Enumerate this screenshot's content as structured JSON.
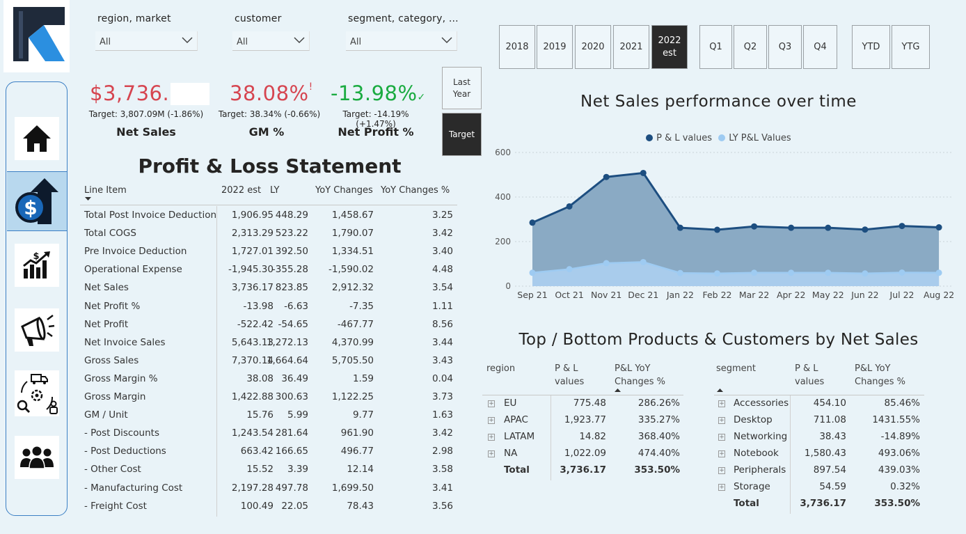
{
  "filters": [
    {
      "label": "region, market",
      "value": "All"
    },
    {
      "label": "customer",
      "value": "All"
    },
    {
      "label": "segment, category, ...",
      "value": "All"
    }
  ],
  "kpis": [
    {
      "value": "$3,736.",
      "target": "Target: 3,807.09M (-1.86%)",
      "title": "Net Sales",
      "color": "#d64550"
    },
    {
      "value": "38.08%",
      "target": "Target: 38.34% (-0.66%)",
      "title": "GM %",
      "color": "#d64550",
      "mark": "!"
    },
    {
      "value": "-13.98%",
      "target": "Target: -14.19% (+1.47%)",
      "title": "Net Profit %",
      "color": "#1aab40",
      "mark": "✓"
    }
  ],
  "compare_toggle": {
    "last_year": "Last Year",
    "target": "Target"
  },
  "years": [
    "2018",
    "2019",
    "2020",
    "2021",
    "2022 est"
  ],
  "quarters": [
    "Q1",
    "Q2",
    "Q3",
    "Q4"
  ],
  "periods": [
    "YTD",
    "YTG"
  ],
  "pl": {
    "title": "Profit & Loss Statement",
    "headers": [
      "Line Item",
      "2022 est",
      "LY",
      "YoY Changes",
      "YoY Changes %"
    ],
    "rows": [
      [
        "Total Post Invoice Deduction",
        "1,906.95",
        "448.29",
        "1,458.67",
        "3.25"
      ],
      [
        "Total COGS",
        "2,313.29",
        "523.22",
        "1,790.07",
        "3.42"
      ],
      [
        "Pre Invoice Deduction",
        "1,727.01",
        "392.50",
        "1,334.51",
        "3.40"
      ],
      [
        "Operational Expense",
        "-1,945.30",
        "-355.28",
        "-1,590.02",
        "4.48"
      ],
      [
        "Net Sales",
        "3,736.17",
        "823.85",
        "2,912.32",
        "3.54"
      ],
      [
        "Net Profit %",
        "-13.98",
        "-6.63",
        "-7.35",
        "1.11"
      ],
      [
        "Net Profit",
        "-522.42",
        "-54.65",
        "-467.77",
        "8.56"
      ],
      [
        "Net Invoice Sales",
        "5,643.13",
        "1,272.13",
        "4,370.99",
        "3.44"
      ],
      [
        "Gross Sales",
        "7,370.14",
        "1,664.64",
        "5,705.50",
        "3.43"
      ],
      [
        "Gross Margin %",
        "38.08",
        "36.49",
        "1.59",
        "0.04"
      ],
      [
        "Gross Margin",
        "1,422.88",
        "300.63",
        "1,122.25",
        "3.73"
      ],
      [
        "GM / Unit",
        "15.76",
        "5.99",
        "9.77",
        "1.63"
      ],
      [
        "- Post Discounts",
        "1,243.54",
        "281.64",
        "961.90",
        "3.42"
      ],
      [
        "- Post Deductions",
        "663.42",
        "166.65",
        "496.77",
        "2.98"
      ],
      [
        "- Other Cost",
        "15.52",
        "3.39",
        "12.14",
        "3.58"
      ],
      [
        "- Manufacturing Cost",
        "2,197.28",
        "497.78",
        "1,699.50",
        "3.41"
      ],
      [
        "- Freight Cost",
        "100.49",
        "22.05",
        "78.43",
        "3.56"
      ]
    ]
  },
  "chart_data": {
    "type": "area",
    "title": "Net Sales performance over time",
    "categories": [
      "Sep 21",
      "Oct 21",
      "Nov 21",
      "Dec 21",
      "Jan 22",
      "Feb 22",
      "Mar 22",
      "Apr 22",
      "May 22",
      "Jun 22",
      "Jul 22",
      "Aug 22"
    ],
    "series": [
      {
        "name": "P & L values",
        "color": "#1d4e80",
        "values": [
          285,
          358,
          490,
          508,
          262,
          253,
          268,
          262,
          262,
          254,
          270,
          264
        ]
      },
      {
        "name": "LY P&L Values",
        "color": "#9ecbf2",
        "values": [
          60,
          76,
          103,
          108,
          59,
          57,
          60,
          60,
          60,
          57,
          61,
          60
        ]
      }
    ],
    "yticks": [
      "0",
      "200",
      "400",
      "600"
    ],
    "ylim": [
      0,
      600
    ],
    "legend": "top-center",
    "grid": true
  },
  "topbottom": {
    "title": "Top / Bottom Products & Customers by Net Sales",
    "region_table": {
      "headers": [
        "region",
        "P & L values",
        "P&L YoY Changes %"
      ],
      "rows": [
        [
          "EU",
          "775.48",
          "286.26%"
        ],
        [
          "APAC",
          "1,923.77",
          "335.27%"
        ],
        [
          "LATAM",
          "14.82",
          "368.40%"
        ],
        [
          "NA",
          "1,022.09",
          "474.40%"
        ]
      ],
      "total": [
        "Total",
        "3,736.17",
        "353.50%"
      ]
    },
    "segment_table": {
      "headers": [
        "segment",
        "P & L values",
        "P&L YoY Changes %"
      ],
      "rows": [
        [
          "Accessories",
          "454.10",
          "85.46%"
        ],
        [
          "Desktop",
          "711.08",
          "1431.55%"
        ],
        [
          "Networking",
          "38.43",
          "-14.89%"
        ],
        [
          "Notebook",
          "1,580.43",
          "493.06%"
        ],
        [
          "Peripherals",
          "897.54",
          "439.03%"
        ],
        [
          "Storage",
          "54.59",
          "0.32%"
        ]
      ],
      "total": [
        "Total",
        "3,736.17",
        "353.50%"
      ]
    }
  }
}
